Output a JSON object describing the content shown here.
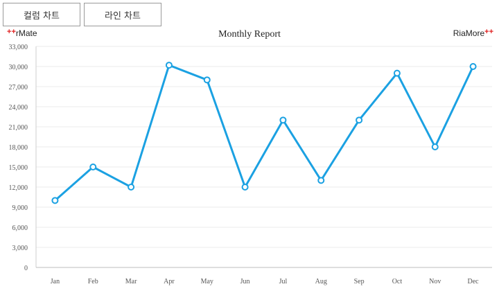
{
  "buttons": {
    "column_chart": "컬럼 차트",
    "line_chart": "라인 차트"
  },
  "brand": {
    "left": "rMate",
    "right": "RiaMore",
    "plus_mark": "+"
  },
  "colors": {
    "line": "#1ba1e2",
    "marker_fill": "#ffffff",
    "grid": "#ebebeb",
    "axis_text": "#555555"
  },
  "chart_data": {
    "type": "line",
    "title": "Monthly Report",
    "xlabel": "",
    "ylabel": "",
    "categories": [
      "Jan",
      "Feb",
      "Mar",
      "Apr",
      "May",
      "Jun",
      "Jul",
      "Aug",
      "Sep",
      "Oct",
      "Nov",
      "Dec"
    ],
    "series": [
      {
        "values": [
          10000,
          15000,
          12000,
          30200,
          28000,
          12000,
          22000,
          13000,
          22000,
          29000,
          18000,
          30000
        ]
      }
    ],
    "ylim": [
      0,
      33000
    ],
    "yticks": [
      "0",
      "3,000",
      "6,000",
      "9,000",
      "12,000",
      "15,000",
      "18,000",
      "21,000",
      "24,000",
      "27,000",
      "30,000",
      "33,000"
    ],
    "grid": true,
    "legend": "none"
  }
}
